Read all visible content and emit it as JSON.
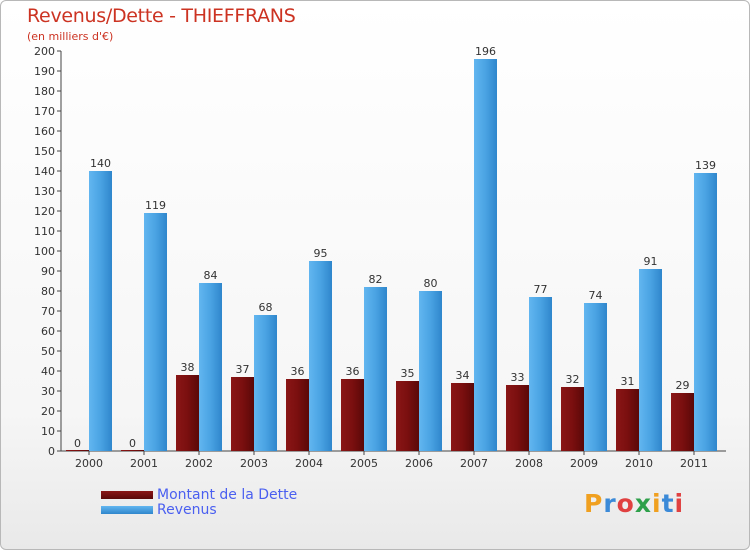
{
  "title": "Revenus/Dette - THIEFFRANS",
  "subtitle": "(en milliers d'€)",
  "colors": {
    "dette": "#7a0f0f",
    "revenus": "#4aa3e3",
    "title": "#cc3322",
    "legend_text": "#4a5ff0"
  },
  "legend": [
    {
      "label": "Montant de la Dette",
      "color": "#7a0f0f"
    },
    {
      "label": "Revenus",
      "color": "#4aa3e3"
    }
  ],
  "logo": {
    "text": "Proxiti"
  },
  "chart_data": {
    "type": "bar",
    "title": "Revenus/Dette - THIEFFRANS",
    "subtitle": "(en milliers d'€)",
    "categories": [
      "2000",
      "2001",
      "2002",
      "2003",
      "2004",
      "2005",
      "2006",
      "2007",
      "2008",
      "2009",
      "2010",
      "2011"
    ],
    "series": [
      {
        "name": "Montant de la Dette",
        "values": [
          0,
          0,
          38,
          37,
          36,
          36,
          35,
          34,
          33,
          32,
          31,
          29
        ]
      },
      {
        "name": "Revenus",
        "values": [
          140,
          119,
          84,
          68,
          95,
          82,
          80,
          196,
          77,
          74,
          91,
          139
        ]
      }
    ],
    "ylim": [
      0,
      200
    ],
    "yticks": [
      0,
      10,
      20,
      30,
      40,
      50,
      60,
      70,
      80,
      90,
      100,
      110,
      120,
      130,
      140,
      150,
      160,
      170,
      180,
      190,
      200
    ],
    "grid": false,
    "legend_position": "bottom-left"
  }
}
